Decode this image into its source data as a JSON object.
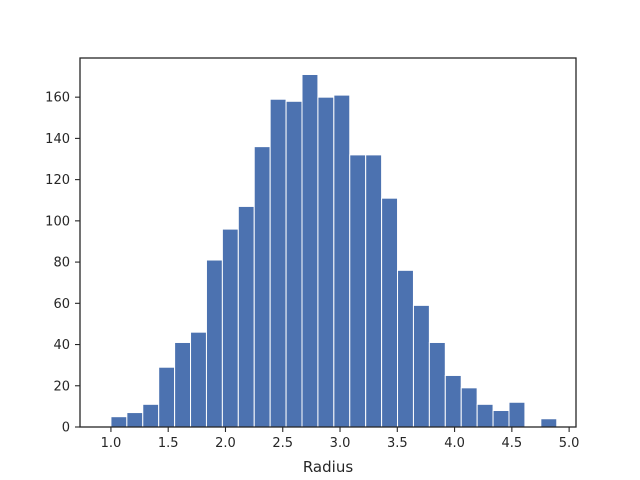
{
  "chart_data": {
    "type": "bar",
    "title": "",
    "xlabel": "Radius",
    "ylabel": "",
    "grid": false,
    "legend": "none",
    "bar_color": "#4c72b0",
    "bar_edge_color": "#ffffff",
    "frame_color": "#262626",
    "xlim": [
      0.73,
      5.06
    ],
    "ylim": [
      0,
      179
    ],
    "xticks": [
      1.0,
      1.5,
      2.0,
      2.5,
      3.0,
      3.5,
      4.0,
      4.5,
      5.0
    ],
    "xtick_labels": [
      "1.0",
      "1.5",
      "2.0",
      "2.5",
      "3.0",
      "3.5",
      "4.0",
      "4.5",
      "5.0"
    ],
    "yticks": [
      0,
      20,
      40,
      60,
      80,
      100,
      120,
      140,
      160
    ],
    "ytick_labels": [
      "0",
      "20",
      "40",
      "60",
      "80",
      "100",
      "120",
      "140",
      "160"
    ],
    "bin_edges": [
      1.0,
      1.139,
      1.278,
      1.417,
      1.556,
      1.695,
      1.834,
      1.973,
      2.112,
      2.251,
      2.39,
      2.529,
      2.668,
      2.807,
      2.946,
      3.085,
      3.224,
      3.363,
      3.502,
      3.641,
      3.78,
      3.919,
      4.058,
      4.197,
      4.336,
      4.475,
      4.614,
      4.753,
      4.892
    ],
    "counts": [
      5,
      7,
      11,
      29,
      41,
      46,
      81,
      96,
      107,
      136,
      159,
      158,
      171,
      160,
      161,
      132,
      132,
      111,
      76,
      59,
      41,
      25,
      19,
      11,
      8,
      12,
      0,
      4
    ]
  }
}
